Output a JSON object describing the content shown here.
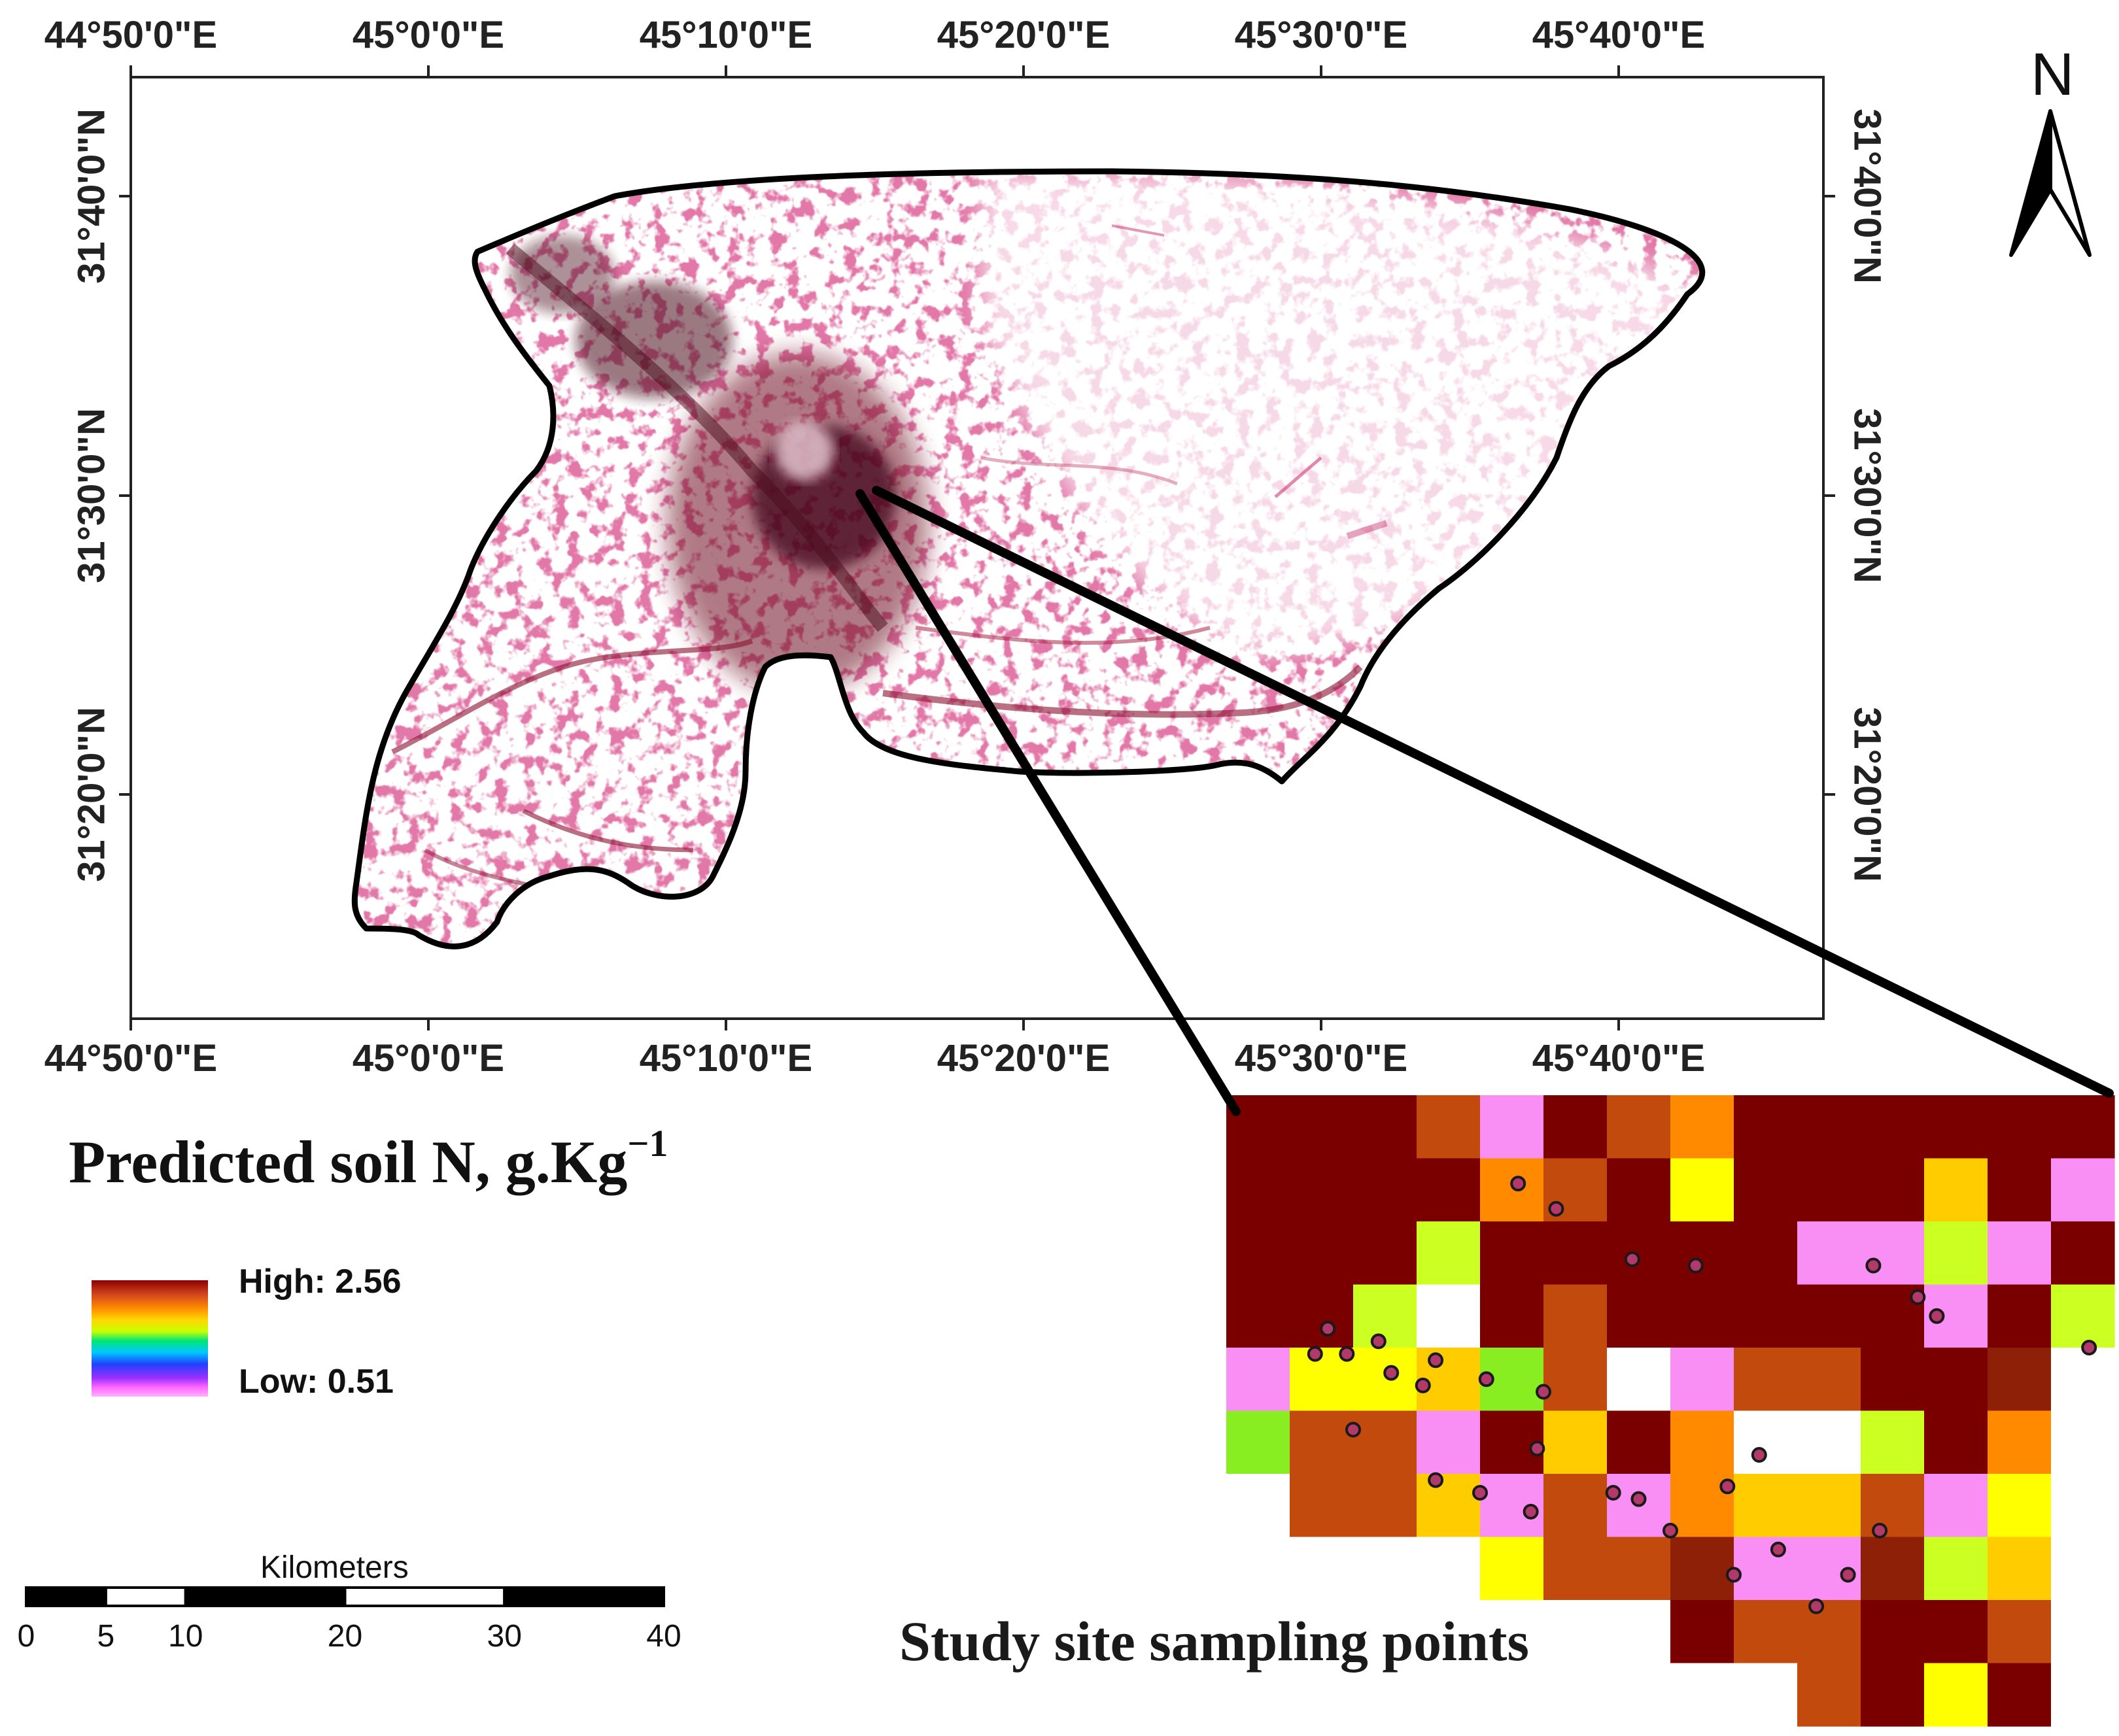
{
  "map": {
    "top_lon_labels": [
      "44°50'0\"E",
      "45°0'0\"E",
      "45°10'0\"E",
      "45°20'0\"E",
      "45°30'0\"E",
      "45°40'0\"E"
    ],
    "bottom_lon_labels": [
      "44°50'0\"E",
      "45°0'0\"E",
      "45°10'0\"E",
      "45°20'0\"E",
      "45°30'0\"E",
      "45°40'0\"E"
    ],
    "left_lat_labels": [
      "31°40'0\"N",
      "31°30'0\"N",
      "31°20'0\"N"
    ],
    "right_lat_labels": [
      "31°40'0\"N",
      "31°30'0\"N",
      "31°20'0\"N"
    ],
    "north_arrow": "N",
    "colors": {
      "low": "#ffd9ec",
      "mid": "#c2185b",
      "high": "#4a0a1a",
      "frame": "#000000"
    }
  },
  "legend": {
    "title": "Predicted soil N, g.Kg",
    "title_superscript": "−1",
    "high_label": "High: 2.56",
    "low_label": "Low: 0.51"
  },
  "scalebar": {
    "title": "Kilometers",
    "ticks": [
      "0",
      "5",
      "10",
      "20",
      "30",
      "40"
    ]
  },
  "inset": {
    "title": "Study site sampling points",
    "grid": [
      [
        "DR",
        "DR",
        "DR",
        "OR",
        "PK",
        "DR",
        "OR",
        "OA",
        "DR",
        "DR",
        "DR",
        "DR",
        "DR",
        "DR"
      ],
      [
        "DR",
        "DR",
        "DR",
        "DR",
        "OA",
        "OR",
        "DR",
        "YE",
        "DR",
        "DR",
        "DR",
        "GO",
        "DR",
        "PK"
      ],
      [
        "DR",
        "DR",
        "DR",
        "LG",
        "DR",
        "DR",
        "DR",
        "DR",
        "DR",
        "PK",
        "PK",
        "LG",
        "PK",
        "DR"
      ],
      [
        "DR",
        "DR",
        "LG",
        "WH",
        "DR",
        "OR",
        "DR",
        "DR",
        "DR",
        "DR",
        "DR",
        "PK",
        "DR",
        "LG"
      ],
      [
        "PK",
        "YE",
        "YE",
        "GO",
        "GR",
        "OR",
        "WH",
        "PK",
        "OR",
        "OR",
        "DR",
        "DR",
        "RB",
        "WH"
      ],
      [
        "GR",
        "OR",
        "OR",
        "PK",
        "DR",
        "GO",
        "DR",
        "OA",
        "WH",
        "WH",
        "LG",
        "DR",
        "OA",
        "WH"
      ],
      [
        "WH",
        "OR",
        "OR",
        "GO",
        "PK",
        "OR",
        "PK",
        "OA",
        "GO",
        "GO",
        "OR",
        "PK",
        "YE",
        "WH"
      ],
      [
        "WH",
        "WH",
        "WH",
        "WH",
        "YE",
        "OR",
        "OR",
        "RB",
        "PK",
        "PK",
        "RB",
        "LG",
        "GO",
        "WH"
      ],
      [
        "WH",
        "WH",
        "WH",
        "WH",
        "WH",
        "WH",
        "WH",
        "DR",
        "OR",
        "OR",
        "DR",
        "DR",
        "OR",
        "WH"
      ],
      [
        "WH",
        "WH",
        "WH",
        "WH",
        "WH",
        "WH",
        "WH",
        "WH",
        "WH",
        "OR",
        "DR",
        "YE",
        "DR",
        "WH"
      ]
    ],
    "palette": {
      "DR": "#7a0000",
      "OR": "#c24a0c",
      "RB": "#8f2008",
      "OA": "#ff8a00",
      "GO": "#ffcc00",
      "YE": "#ffff00",
      "LG": "#ccff22",
      "GR": "#88ee22",
      "PK": "#f98ef5",
      "WH": "#ffffff"
    },
    "sample_points": [
      [
        4.6,
        1.4
      ],
      [
        5.2,
        1.8
      ],
      [
        6.4,
        2.6
      ],
      [
        7.4,
        2.7
      ],
      [
        10.2,
        2.7
      ],
      [
        10.9,
        3.2
      ],
      [
        11.2,
        3.5
      ],
      [
        1.6,
        3.7
      ],
      [
        1.4,
        4.1
      ],
      [
        1.9,
        4.1
      ],
      [
        2.4,
        3.9
      ],
      [
        2.6,
        4.4
      ],
      [
        3.3,
        4.2
      ],
      [
        3.1,
        4.6
      ],
      [
        4.1,
        4.5
      ],
      [
        5.0,
        4.7
      ],
      [
        13.6,
        4.0
      ],
      [
        2.0,
        5.3
      ],
      [
        4.9,
        5.6
      ],
      [
        8.4,
        5.7
      ],
      [
        3.3,
        6.1
      ],
      [
        4.0,
        6.3
      ],
      [
        4.8,
        6.6
      ],
      [
        6.1,
        6.3
      ],
      [
        6.5,
        6.4
      ],
      [
        7.9,
        6.2
      ],
      [
        7.0,
        6.9
      ],
      [
        10.3,
        6.9
      ],
      [
        8.7,
        7.2
      ],
      [
        8.0,
        7.6
      ],
      [
        9.8,
        7.6
      ],
      [
        9.3,
        8.1
      ]
    ],
    "point_color": "#b23a6b"
  }
}
